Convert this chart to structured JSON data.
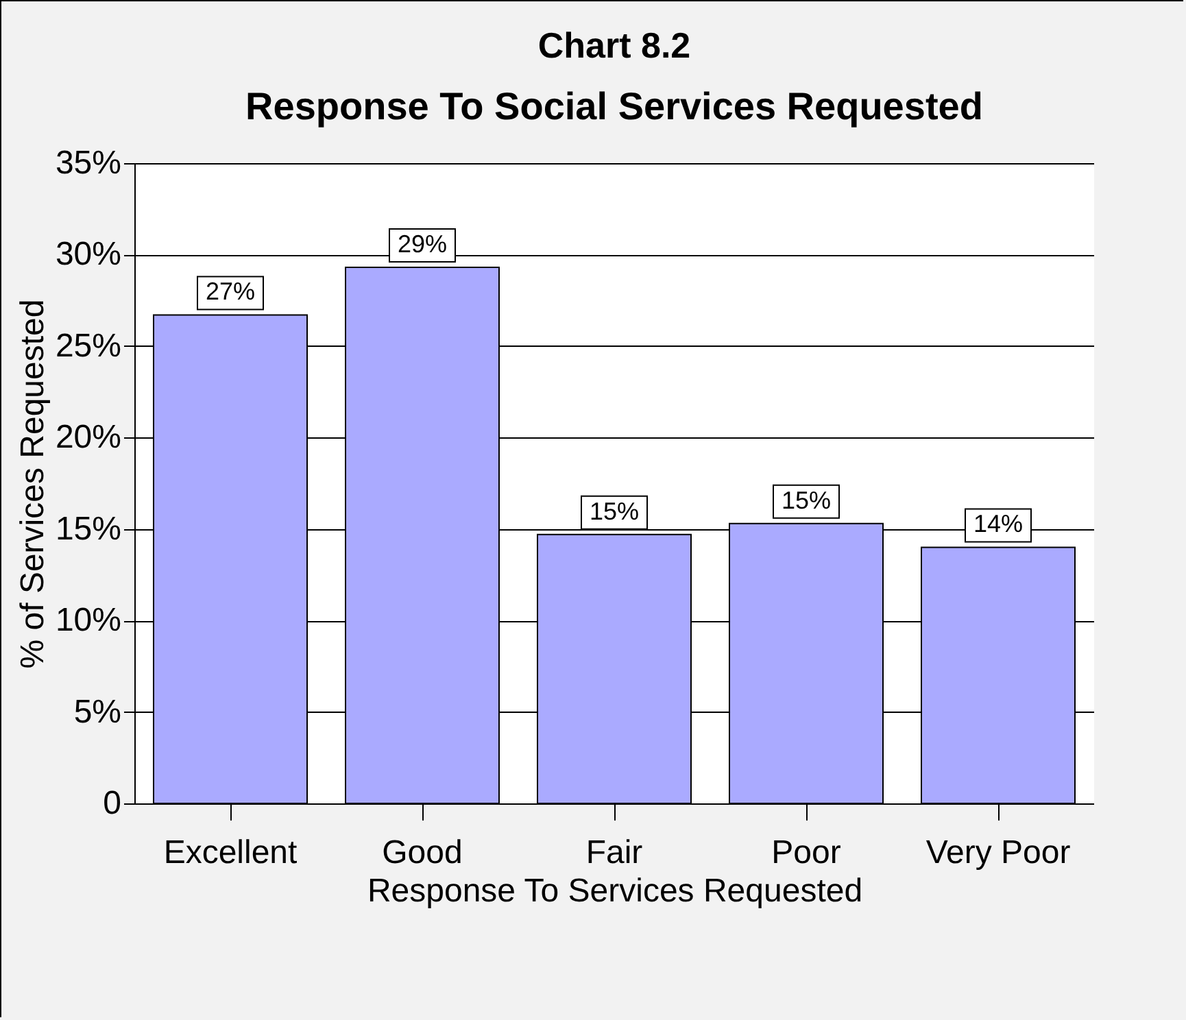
{
  "chart_data": {
    "type": "bar",
    "title": "Chart 8.2",
    "subtitle": "Response To Social Services Requested",
    "xlabel": "Response To Services Requested",
    "ylabel": "% of Services Requested",
    "categories": [
      "Excellent",
      "Good",
      "Fair",
      "Poor",
      "Very Poor"
    ],
    "values": [
      26.7,
      29.3,
      14.7,
      15.3,
      14.0
    ],
    "value_labels": [
      "27%",
      "29%",
      "15%",
      "15%",
      "14%"
    ],
    "color": "#aaaaff",
    "ylim": [
      0,
      35
    ],
    "yticks": [
      0,
      {
        "value": 5,
        "label": "5%"
      },
      {
        "value": 10,
        "label": "10%"
      },
      {
        "value": 15,
        "label": "15%"
      },
      {
        "value": 20,
        "label": "20%"
      },
      {
        "value": 25,
        "label": "25%"
      },
      {
        "value": 30,
        "label": "30%"
      },
      {
        "value": 35,
        "label": "35%"
      }
    ],
    "grid": "y"
  }
}
